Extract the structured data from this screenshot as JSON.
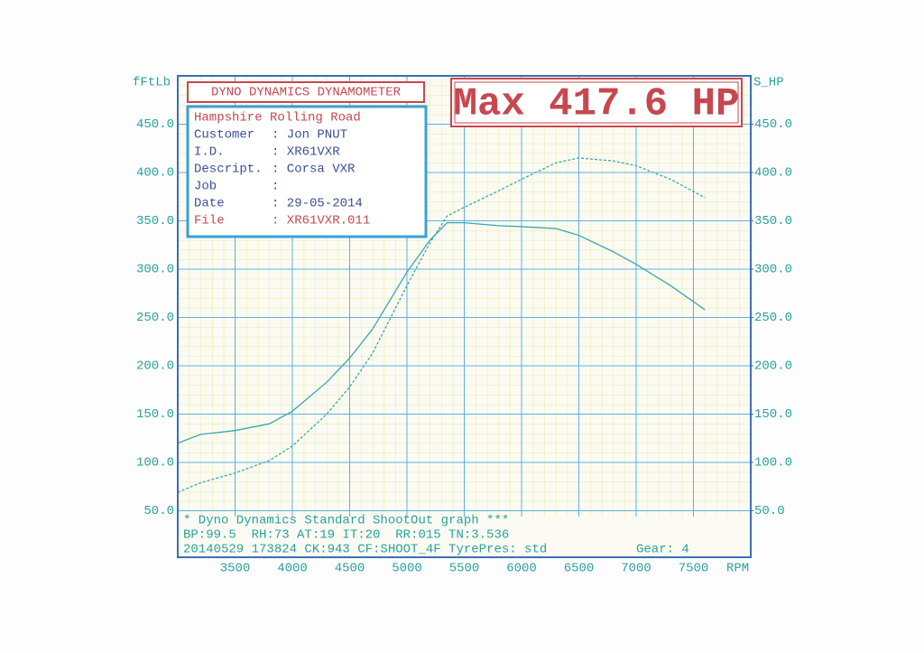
{
  "chart_data": {
    "type": "line",
    "title": "DYNO DYNAMICS DYNAMOMETER",
    "annotation": "Max 417.6 HP",
    "y_label": "fFtLb",
    "y2_label": "S_HP",
    "x_label": "RPM",
    "x": [
      3000,
      3200,
      3500,
      3800,
      4000,
      4300,
      4500,
      4700,
      5000,
      5200,
      5350,
      5500,
      5800,
      6000,
      6300,
      6500,
      6800,
      7000,
      7300,
      7600
    ],
    "xlim": [
      3000,
      8000
    ],
    "xticks": [
      3500,
      4000,
      4500,
      5000,
      5500,
      6000,
      6500,
      7000,
      7500
    ],
    "ylim": [
      0,
      500
    ],
    "yticks": [
      {
        "value": 50,
        "label": "50.0"
      },
      {
        "value": 100,
        "label": "100.0"
      },
      {
        "value": 150,
        "label": "150.0"
      },
      {
        "value": 200,
        "label": "200.0"
      },
      {
        "value": 250,
        "label": "250.0"
      },
      {
        "value": 300,
        "label": "300.0"
      },
      {
        "value": 350,
        "label": "350.0"
      },
      {
        "value": 400,
        "label": "400.0"
      },
      {
        "value": 450,
        "label": "450.0"
      }
    ],
    "y2lim": [
      0,
      500
    ],
    "y2ticks": [
      {
        "value": 50,
        "label": "50.0"
      },
      {
        "value": 100,
        "label": "100.0"
      },
      {
        "value": 150,
        "label": "150.0"
      },
      {
        "value": 200,
        "label": "200.0"
      },
      {
        "value": 250,
        "label": "250.0"
      },
      {
        "value": 300,
        "label": "300.0"
      },
      {
        "value": 350,
        "label": "350.0"
      },
      {
        "value": 400,
        "label": "400.0"
      },
      {
        "value": 450,
        "label": "450.0"
      }
    ],
    "grid": true,
    "series": [
      {
        "color": "#3aa8b0",
        "style": "solid",
        "values": [
          120,
          129,
          133,
          140,
          153,
          183,
          208,
          238,
          297,
          330,
          348,
          348,
          345,
          344,
          342,
          335,
          318,
          305,
          283,
          258
        ]
      },
      {
        "color": "#3aa8b0",
        "style": "dashed",
        "axis": "y2",
        "values": [
          69,
          79,
          89,
          102,
          117,
          150,
          178,
          213,
          283,
          327,
          355,
          364,
          381,
          393,
          410,
          415,
          412,
          407,
          393,
          374
        ]
      }
    ]
  },
  "info_box": {
    "heading": "Hampshire Rolling Road",
    "rows": [
      [
        "Customer",
        ": Jon PNUT"
      ],
      [
        "I.D.",
        ": XR61VXR"
      ],
      [
        "Descript.",
        ": Corsa VXR"
      ],
      [
        "Job",
        ":"
      ],
      [
        "Date",
        ": 29-05-2014"
      ],
      [
        "File",
        ": XR61VXR.011"
      ]
    ]
  },
  "footer": {
    "lines": [
      "* Dyno Dynamics Standard ShootOut graph ***",
      "BP:99.5  RH:73 AT:19 IT:20  RR:015 TN:3.536",
      "20140529 173824 CK:943 CF:SHOOT_4F TyrePres: std"
    ],
    "gear": "Gear: 4"
  }
}
